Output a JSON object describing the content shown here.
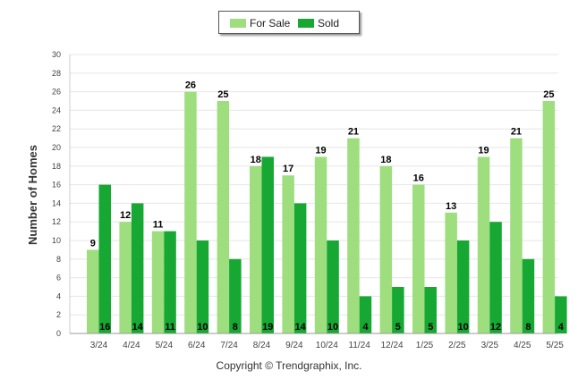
{
  "chart_data": {
    "type": "bar",
    "categories": [
      "3/24",
      "4/24",
      "5/24",
      "6/24",
      "7/24",
      "8/24",
      "9/24",
      "10/24",
      "11/24",
      "12/24",
      "1/25",
      "2/25",
      "3/25",
      "4/25",
      "5/25"
    ],
    "series": [
      {
        "name": "For Sale",
        "color": "#9ede7e",
        "values": [
          9,
          12,
          11,
          26,
          25,
          18,
          17,
          19,
          21,
          18,
          16,
          13,
          19,
          21,
          25
        ]
      },
      {
        "name": "Sold",
        "color": "#17a834",
        "values": [
          16,
          14,
          11,
          10,
          8,
          19,
          14,
          10,
          4,
          5,
          5,
          10,
          12,
          8,
          4
        ]
      }
    ],
    "ylabel": "Number of Homes",
    "ylim": [
      0,
      30
    ],
    "yticks": [
      0,
      2,
      4,
      6,
      8,
      10,
      12,
      14,
      16,
      18,
      20,
      22,
      24,
      26,
      28,
      30
    ],
    "grid": true,
    "legend_position": "top-center"
  },
  "footer": {
    "copyright": "Copyright © Trendgraphix, Inc."
  }
}
